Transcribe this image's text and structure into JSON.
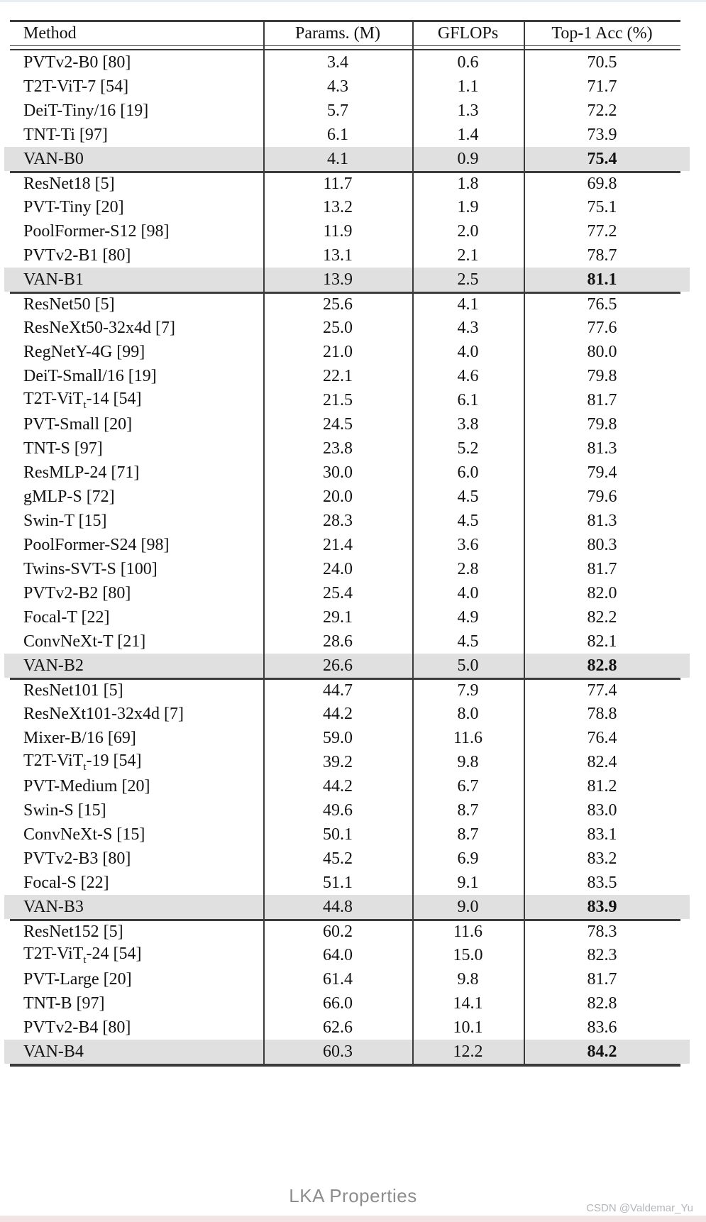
{
  "colors": {
    "rule": "#3b3b3b",
    "row_highlight": "#e0e0e0",
    "caption_text": "#8d8d8d",
    "watermark_text": "#b3b6ba",
    "top_strip": "#e8eff4",
    "bottom_strip": "#f2e3e5"
  },
  "caption": "LKA Properties",
  "watermark": "CSDN @Valdemar_Yu",
  "chart_data": {
    "type": "table",
    "title": "",
    "columns": [
      "Method",
      "Params. (M)",
      "GFLOPs",
      "Top-1 Acc (%)"
    ],
    "groups": [
      [
        {
          "method": "PVTv2-B0 [80]",
          "params": "3.4",
          "gflops": "0.6",
          "acc": "70.5",
          "highlight": false
        },
        {
          "method": "T2T-ViT-7 [54]",
          "params": "4.3",
          "gflops": "1.1",
          "acc": "71.7",
          "highlight": false
        },
        {
          "method": "DeiT-Tiny/16 [19]",
          "params": "5.7",
          "gflops": "1.3",
          "acc": "72.2",
          "highlight": false
        },
        {
          "method": "TNT-Ti [97]",
          "params": "6.1",
          "gflops": "1.4",
          "acc": "73.9",
          "highlight": false
        },
        {
          "method": "VAN-B0",
          "params": "4.1",
          "gflops": "0.9",
          "acc": "75.4",
          "highlight": true
        }
      ],
      [
        {
          "method": "ResNet18 [5]",
          "params": "11.7",
          "gflops": "1.8",
          "acc": "69.8",
          "highlight": false
        },
        {
          "method": "PVT-Tiny [20]",
          "params": "13.2",
          "gflops": "1.9",
          "acc": "75.1",
          "highlight": false
        },
        {
          "method": "PoolFormer-S12 [98]",
          "params": "11.9",
          "gflops": "2.0",
          "acc": "77.2",
          "highlight": false
        },
        {
          "method": "PVTv2-B1 [80]",
          "params": "13.1",
          "gflops": "2.1",
          "acc": "78.7",
          "highlight": false
        },
        {
          "method": "VAN-B1",
          "params": "13.9",
          "gflops": "2.5",
          "acc": "81.1",
          "highlight": true
        }
      ],
      [
        {
          "method": "ResNet50 [5]",
          "params": "25.6",
          "gflops": "4.1",
          "acc": "76.5",
          "highlight": false
        },
        {
          "method": "ResNeXt50-32x4d [7]",
          "params": "25.0",
          "gflops": "4.3",
          "acc": "77.6",
          "highlight": false
        },
        {
          "method": "RegNetY-4G [99]",
          "params": "21.0",
          "gflops": "4.0",
          "acc": "80.0",
          "highlight": false
        },
        {
          "method": "DeiT-Small/16 [19]",
          "params": "22.1",
          "gflops": "4.6",
          "acc": "79.8",
          "highlight": false
        },
        {
          "method": "T2T-ViT_{t}-14 [54]",
          "params": "21.5",
          "gflops": "6.1",
          "acc": "81.7",
          "highlight": false
        },
        {
          "method": "PVT-Small [20]",
          "params": "24.5",
          "gflops": "3.8",
          "acc": "79.8",
          "highlight": false
        },
        {
          "method": "TNT-S [97]",
          "params": "23.8",
          "gflops": "5.2",
          "acc": "81.3",
          "highlight": false
        },
        {
          "method": "ResMLP-24 [71]",
          "params": "30.0",
          "gflops": "6.0",
          "acc": "79.4",
          "highlight": false
        },
        {
          "method": "gMLP-S [72]",
          "params": "20.0",
          "gflops": "4.5",
          "acc": "79.6",
          "highlight": false
        },
        {
          "method": "Swin-T [15]",
          "params": "28.3",
          "gflops": "4.5",
          "acc": "81.3",
          "highlight": false
        },
        {
          "method": "PoolFormer-S24 [98]",
          "params": "21.4",
          "gflops": "3.6",
          "acc": "80.3",
          "highlight": false
        },
        {
          "method": "Twins-SVT-S [100]",
          "params": "24.0",
          "gflops": "2.8",
          "acc": "81.7",
          "highlight": false
        },
        {
          "method": "PVTv2-B2 [80]",
          "params": "25.4",
          "gflops": "4.0",
          "acc": "82.0",
          "highlight": false
        },
        {
          "method": "Focal-T [22]",
          "params": "29.1",
          "gflops": "4.9",
          "acc": "82.2",
          "highlight": false
        },
        {
          "method": "ConvNeXt-T [21]",
          "params": "28.6",
          "gflops": "4.5",
          "acc": "82.1",
          "highlight": false
        },
        {
          "method": "VAN-B2",
          "params": "26.6",
          "gflops": "5.0",
          "acc": "82.8",
          "highlight": true
        }
      ],
      [
        {
          "method": "ResNet101 [5]",
          "params": "44.7",
          "gflops": "7.9",
          "acc": "77.4",
          "highlight": false
        },
        {
          "method": "ResNeXt101-32x4d [7]",
          "params": "44.2",
          "gflops": "8.0",
          "acc": "78.8",
          "highlight": false
        },
        {
          "method": "Mixer-B/16 [69]",
          "params": "59.0",
          "gflops": "11.6",
          "acc": "76.4",
          "highlight": false
        },
        {
          "method": "T2T-ViT_{t}-19 [54]",
          "params": "39.2",
          "gflops": "9.8",
          "acc": "82.4",
          "highlight": false
        },
        {
          "method": "PVT-Medium [20]",
          "params": "44.2",
          "gflops": "6.7",
          "acc": "81.2",
          "highlight": false
        },
        {
          "method": "Swin-S [15]",
          "params": "49.6",
          "gflops": "8.7",
          "acc": "83.0",
          "highlight": false
        },
        {
          "method": "ConvNeXt-S [15]",
          "params": "50.1",
          "gflops": "8.7",
          "acc": "83.1",
          "highlight": false
        },
        {
          "method": "PVTv2-B3 [80]",
          "params": "45.2",
          "gflops": "6.9",
          "acc": "83.2",
          "highlight": false
        },
        {
          "method": "Focal-S [22]",
          "params": "51.1",
          "gflops": "9.1",
          "acc": "83.5",
          "highlight": false
        },
        {
          "method": "VAN-B3",
          "params": "44.8",
          "gflops": "9.0",
          "acc": "83.9",
          "highlight": true
        }
      ],
      [
        {
          "method": "ResNet152 [5]",
          "params": "60.2",
          "gflops": "11.6",
          "acc": "78.3",
          "highlight": false
        },
        {
          "method": "T2T-ViT_{t}-24 [54]",
          "params": "64.0",
          "gflops": "15.0",
          "acc": "82.3",
          "highlight": false
        },
        {
          "method": "PVT-Large [20]",
          "params": "61.4",
          "gflops": "9.8",
          "acc": "81.7",
          "highlight": false
        },
        {
          "method": "TNT-B [97]",
          "params": "66.0",
          "gflops": "14.1",
          "acc": "82.8",
          "highlight": false
        },
        {
          "method": "PVTv2-B4 [80]",
          "params": "62.6",
          "gflops": "10.1",
          "acc": "83.6",
          "highlight": false
        },
        {
          "method": "VAN-B4",
          "params": "60.3",
          "gflops": "12.2",
          "acc": "84.2",
          "highlight": true
        }
      ]
    ]
  }
}
